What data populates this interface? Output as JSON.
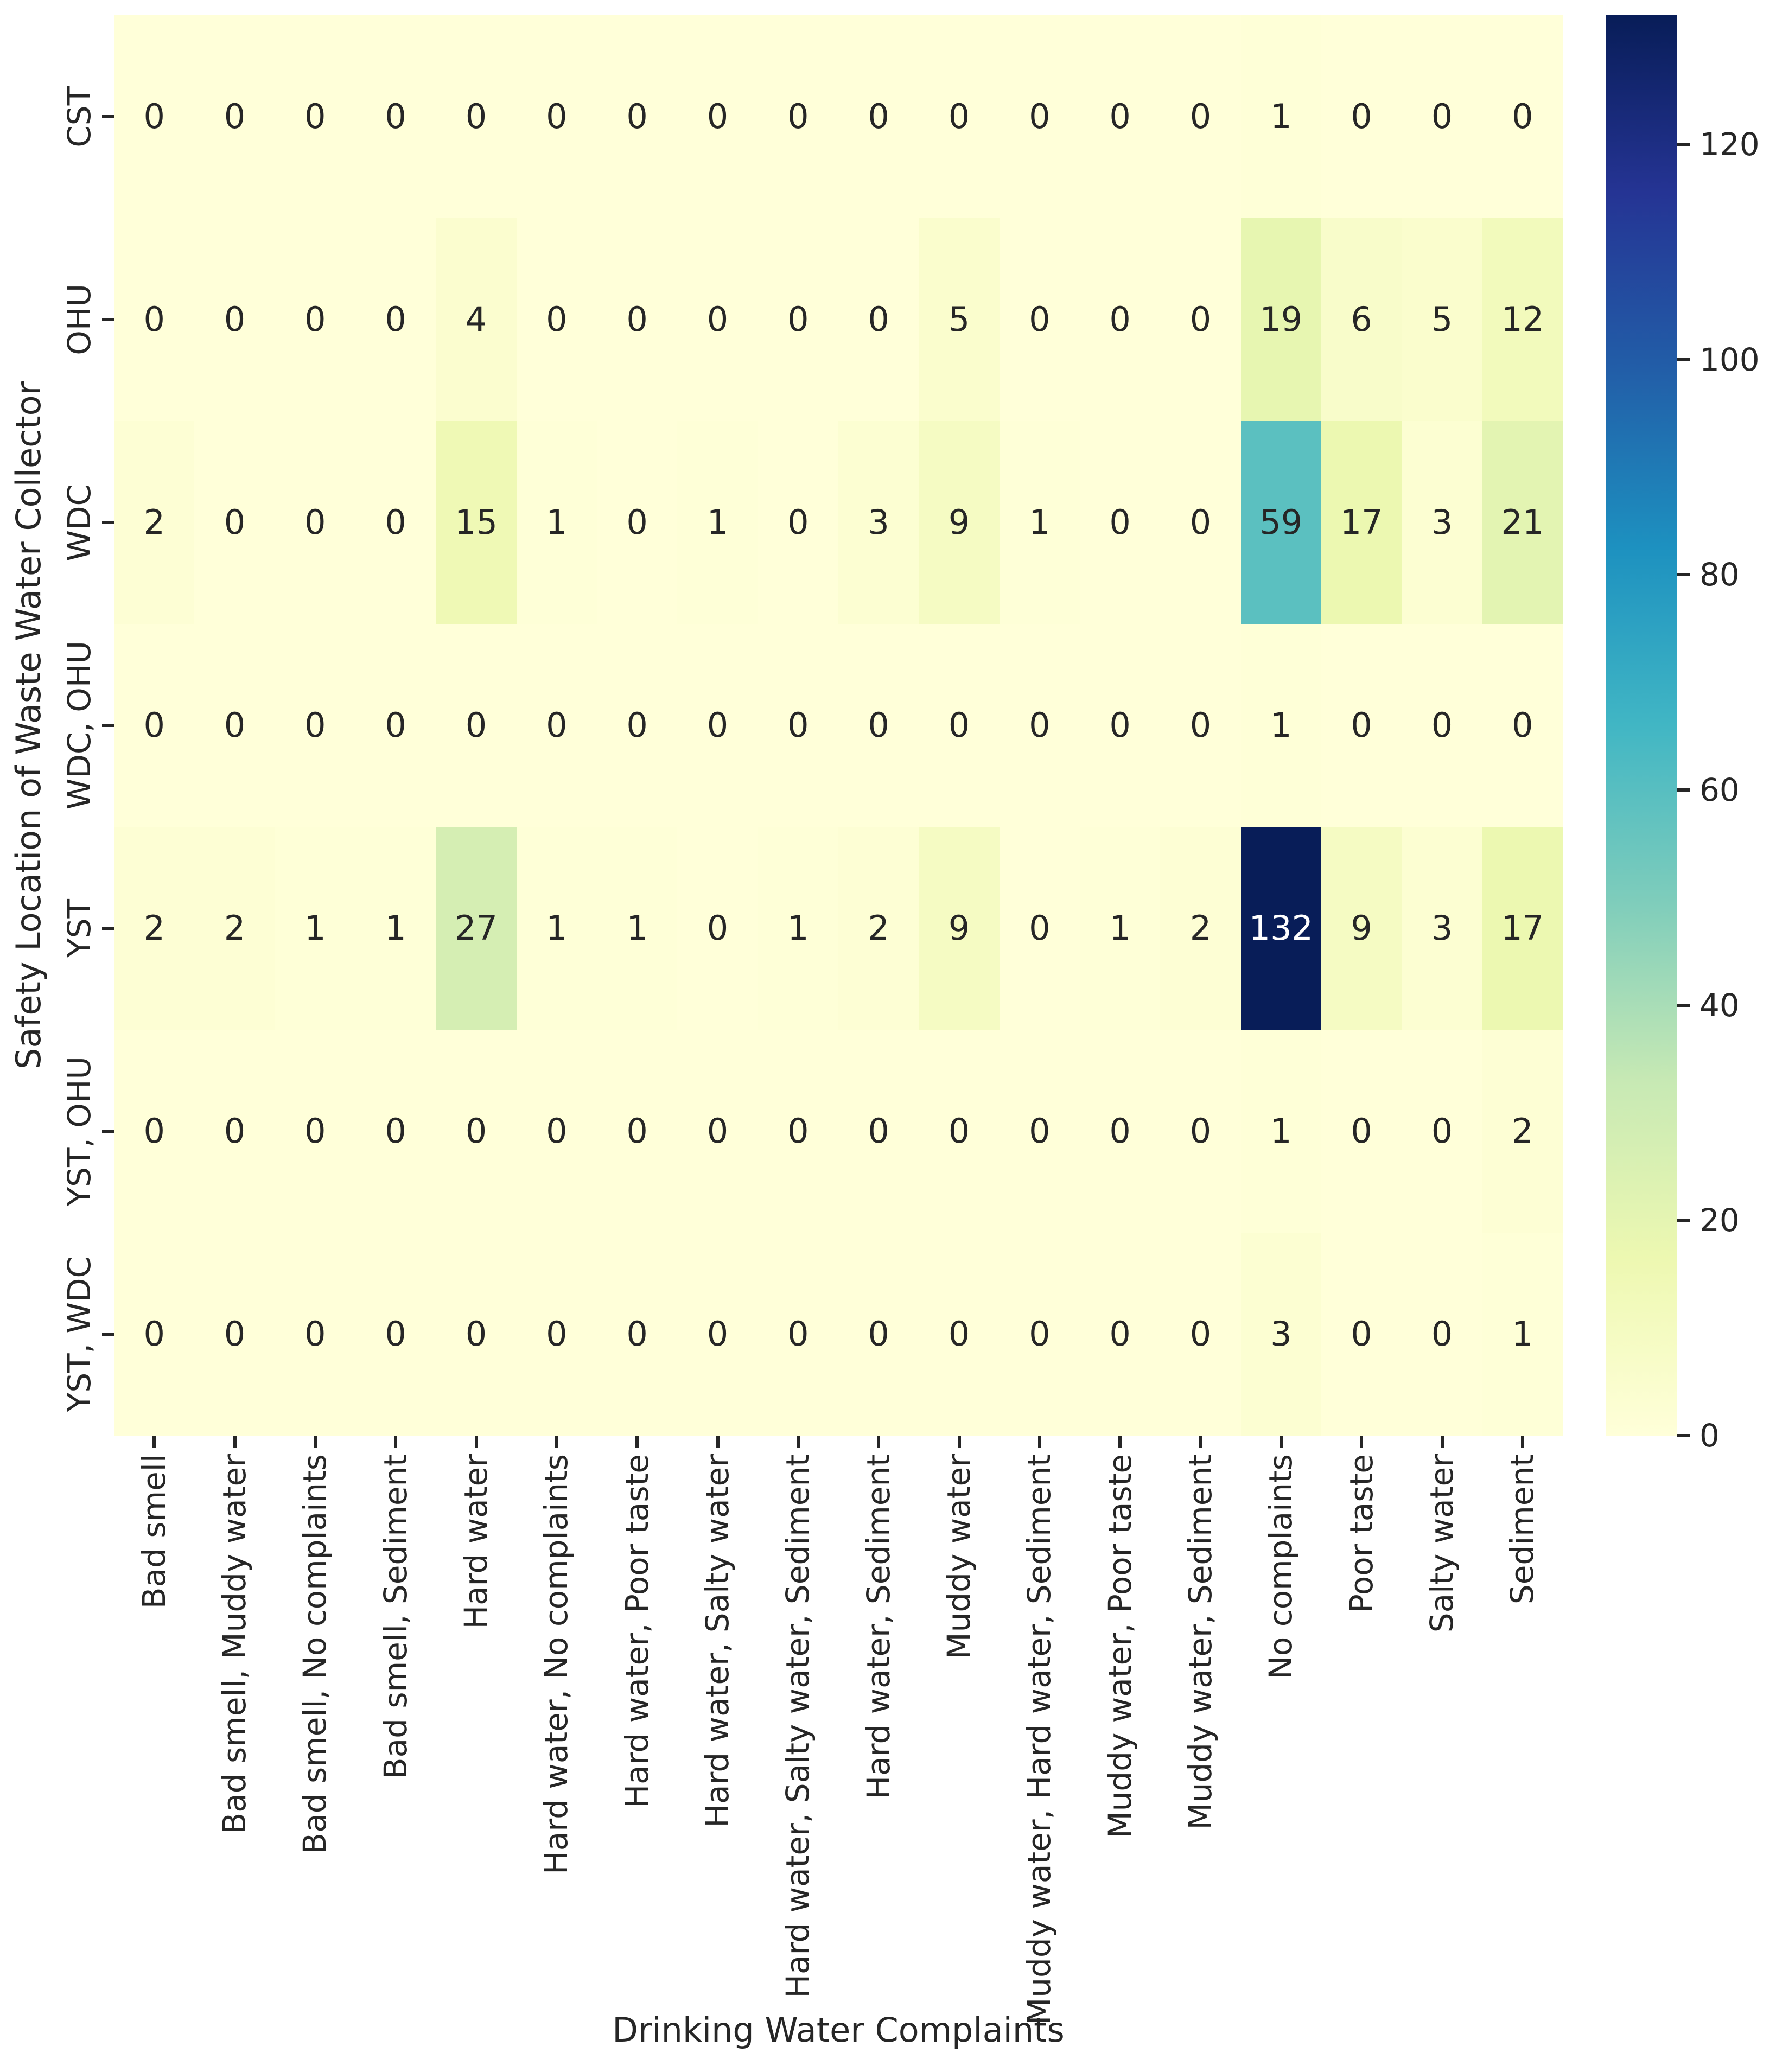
{
  "figure": {
    "x_axis_label": "Drinking Water Complaints",
    "y_axis_label": "Safety Location of Waste Water Collector"
  },
  "chart_data": {
    "type": "heatmap",
    "title": "",
    "xlabel": "Drinking Water Complaints",
    "ylabel": "Safety Location of Waste Water Collector",
    "x_categories": [
      "Bad smell",
      "Bad smell, Muddy water",
      "Bad smell, No complaints",
      "Bad smell, Sediment",
      "Hard water",
      "Hard water, No complaints",
      "Hard water, Poor taste",
      "Hard water, Salty water",
      "Hard water, Salty water, Sediment",
      "Hard water, Sediment",
      "Muddy water",
      "Muddy water, Hard water, Sediment",
      "Muddy water, Poor taste",
      "Muddy water, Sediment",
      "No complaints",
      "Poor taste",
      "Salty water",
      "Sediment"
    ],
    "y_categories": [
      "CST",
      "OHU",
      "WDC",
      "WDC, OHU",
      "YST",
      "YST, OHU",
      "YST, WDC"
    ],
    "values": [
      [
        0,
        0,
        0,
        0,
        0,
        0,
        0,
        0,
        0,
        0,
        0,
        0,
        0,
        0,
        1,
        0,
        0,
        0
      ],
      [
        0,
        0,
        0,
        0,
        4,
        0,
        0,
        0,
        0,
        0,
        5,
        0,
        0,
        0,
        19,
        6,
        5,
        12
      ],
      [
        2,
        0,
        0,
        0,
        15,
        1,
        0,
        1,
        0,
        3,
        9,
        1,
        0,
        0,
        59,
        17,
        3,
        21
      ],
      [
        0,
        0,
        0,
        0,
        0,
        0,
        0,
        0,
        0,
        0,
        0,
        0,
        0,
        0,
        1,
        0,
        0,
        0
      ],
      [
        2,
        2,
        1,
        1,
        27,
        1,
        1,
        0,
        1,
        2,
        9,
        0,
        1,
        2,
        132,
        9,
        3,
        17
      ],
      [
        0,
        0,
        0,
        0,
        0,
        0,
        0,
        0,
        0,
        0,
        0,
        0,
        0,
        0,
        1,
        0,
        0,
        2
      ],
      [
        0,
        0,
        0,
        0,
        0,
        0,
        0,
        0,
        0,
        0,
        0,
        0,
        0,
        0,
        3,
        0,
        0,
        1
      ]
    ],
    "vmin": 0,
    "vmax": 132,
    "colormap": "YlGnBu",
    "colormap_stops": [
      [
        0.0,
        "#ffffd9"
      ],
      [
        0.125,
        "#edf8b1"
      ],
      [
        0.25,
        "#c7e9b4"
      ],
      [
        0.375,
        "#7fcdbb"
      ],
      [
        0.5,
        "#41b6c4"
      ],
      [
        0.625,
        "#1d91c0"
      ],
      [
        0.75,
        "#225ea8"
      ],
      [
        0.875,
        "#253494"
      ],
      [
        1.0,
        "#081d58"
      ]
    ],
    "colorbar_ticks": [
      0,
      20,
      40,
      60,
      80,
      100,
      120
    ],
    "colorbar_position": "right",
    "annotation_dark_text_color": "#262626",
    "annotation_light_text_color": "#ffffff",
    "tick_color": "#262626",
    "grid": false
  }
}
